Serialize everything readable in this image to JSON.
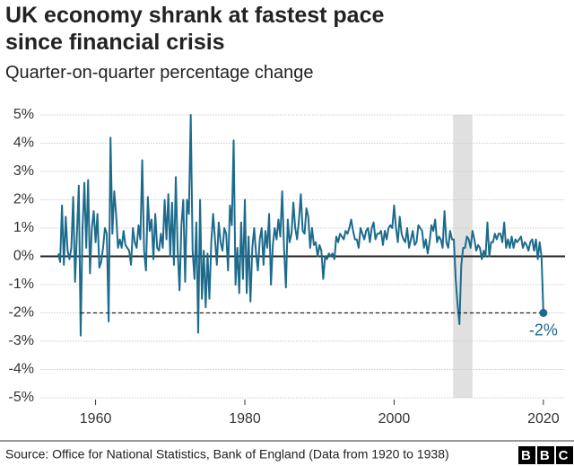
{
  "chart_data": {
    "type": "line",
    "title": "UK economy shrank at fastest pace since financial crisis",
    "subtitle": "Quarter-on-quarter percentage change",
    "source": "Source: Office for National Statistics, Bank of England (Data from 1920 to 1938)",
    "logo": "BBC",
    "annotation": "-2%",
    "color": "#1d6b8c",
    "shaded_range": [
      2007.9,
      2010.5
    ],
    "xlim": [
      1952.6,
      2022.9
    ],
    "xticks": [
      1960,
      1980,
      2000,
      2020
    ],
    "ylim": [
      -5,
      5
    ],
    "yticks": [
      {
        "value": 5,
        "label": "5%"
      },
      {
        "value": 4,
        "label": "4%"
      },
      {
        "value": 3,
        "label": "3%"
      },
      {
        "value": 2,
        "label": "2%"
      },
      {
        "value": 1,
        "label": "1%"
      },
      {
        "value": 0,
        "label": "0%"
      },
      {
        "value": -1,
        "label": "-1%"
      },
      {
        "value": -2,
        "label": "-2%"
      },
      {
        "value": -3,
        "label": "-3%"
      },
      {
        "value": -4,
        "label": "-4%"
      },
      {
        "value": -5,
        "label": "-5%"
      }
    ],
    "grid": true,
    "x": [
      1955,
      1955.25,
      1955.5,
      1955.75,
      1956,
      1956.25,
      1956.5,
      1956.75,
      1957,
      1957.25,
      1957.5,
      1957.75,
      1958,
      1958.25,
      1958.5,
      1958.75,
      1959,
      1959.25,
      1959.5,
      1959.75,
      1960,
      1960.25,
      1960.5,
      1960.75,
      1961,
      1961.25,
      1961.5,
      1961.75,
      1962,
      1962.25,
      1962.5,
      1962.75,
      1963,
      1963.25,
      1963.5,
      1963.75,
      1964,
      1964.25,
      1964.5,
      1964.75,
      1965,
      1965.25,
      1965.5,
      1965.75,
      1966,
      1966.25,
      1966.5,
      1966.75,
      1967,
      1967.25,
      1967.5,
      1967.75,
      1968,
      1968.25,
      1968.5,
      1968.75,
      1969,
      1969.25,
      1969.5,
      1969.75,
      1970,
      1970.25,
      1970.5,
      1970.75,
      1971,
      1971.25,
      1971.5,
      1971.75,
      1972,
      1972.25,
      1972.5,
      1972.75,
      1973,
      1973.25,
      1973.5,
      1973.75,
      1974,
      1974.25,
      1974.5,
      1974.75,
      1975,
      1975.25,
      1975.5,
      1975.75,
      1976,
      1976.25,
      1976.5,
      1976.75,
      1977,
      1977.25,
      1977.5,
      1977.75,
      1978,
      1978.25,
      1978.5,
      1978.75,
      1979,
      1979.25,
      1979.5,
      1979.75,
      1980,
      1980.25,
      1980.5,
      1980.75,
      1981,
      1981.25,
      1981.5,
      1981.75,
      1982,
      1982.25,
      1982.5,
      1982.75,
      1983,
      1983.25,
      1983.5,
      1983.75,
      1984,
      1984.25,
      1984.5,
      1984.75,
      1985,
      1985.25,
      1985.5,
      1985.75,
      1986,
      1986.25,
      1986.5,
      1986.75,
      1987,
      1987.25,
      1987.5,
      1987.75,
      1988,
      1988.25,
      1988.5,
      1988.75,
      1989,
      1989.25,
      1989.5,
      1989.75,
      1990,
      1990.25,
      1990.5,
      1990.75,
      1991,
      1991.25,
      1991.5,
      1991.75,
      1992,
      1992.25,
      1992.5,
      1992.75,
      1993,
      1993.25,
      1993.5,
      1993.75,
      1994,
      1994.25,
      1994.5,
      1994.75,
      1995,
      1995.25,
      1995.5,
      1995.75,
      1996,
      1996.25,
      1996.5,
      1996.75,
      1997,
      1997.25,
      1997.5,
      1997.75,
      1998,
      1998.25,
      1998.5,
      1998.75,
      1999,
      1999.25,
      1999.5,
      1999.75,
      2000,
      2000.25,
      2000.5,
      2000.75,
      2001,
      2001.25,
      2001.5,
      2001.75,
      2002,
      2002.25,
      2002.5,
      2002.75,
      2003,
      2003.25,
      2003.5,
      2003.75,
      2004,
      2004.25,
      2004.5,
      2004.75,
      2005,
      2005.25,
      2005.5,
      2005.75,
      2006,
      2006.25,
      2006.5,
      2006.75,
      2007,
      2007.25,
      2007.5,
      2007.75,
      2008,
      2008.25,
      2008.5,
      2008.75,
      2009,
      2009.25,
      2009.5,
      2009.75,
      2010,
      2010.25,
      2010.5,
      2010.75,
      2011,
      2011.25,
      2011.5,
      2011.75,
      2012,
      2012.25,
      2012.5,
      2012.75,
      2013,
      2013.25,
      2013.5,
      2013.75,
      2014,
      2014.25,
      2014.5,
      2014.75,
      2015,
      2015.25,
      2015.5,
      2015.75,
      2016,
      2016.25,
      2016.5,
      2016.75,
      2017,
      2017.25,
      2017.5,
      2017.75,
      2018,
      2018.25,
      2018.5,
      2018.75,
      2019,
      2019.25,
      2019.5,
      2019.75,
      2020
    ],
    "values": [
      0.1,
      -0.2,
      1.8,
      -0.3,
      1.4,
      0.2,
      -0.1,
      0.3,
      2.1,
      -0.9,
      0.8,
      2.5,
      -2.8,
      1.0,
      2.6,
      0.3,
      2.7,
      -0.6,
      1.0,
      1.6,
      0.5,
      1.5,
      -0.4,
      -0.2,
      0.3,
      1.0,
      0.8,
      -2.3,
      4.2,
      0.8,
      2.3,
      1.5,
      0.3,
      0.6,
      0.3,
      0.9,
      0.4,
      0.3,
      0.2,
      -0.3,
      1.0,
      0.5,
      0.3,
      1.1,
      0.6,
      3.4,
      0.2,
      -0.5,
      2.1,
      0.9,
      1.3,
      -0.1,
      1.5,
      0.3,
      0.2,
      0.8,
      0.3,
      2.0,
      0.6,
      2.2,
      0.0,
      1.9,
      -0.3,
      2.8,
      0.2,
      -1.2,
      1.1,
      2.0,
      -0.9,
      2.0,
      1.5,
      5.0,
      0.2,
      -0.8,
      1.2,
      -2.7,
      2.0,
      -1.5,
      0.2,
      -1.8,
      0.1,
      -1.5,
      0.5,
      1.5,
      0.6,
      -0.3,
      1.2,
      0.5,
      0.2,
      1.0,
      0.8,
      -0.5,
      1.8,
      1.1,
      4.1,
      -1.0,
      0.3,
      -1.3,
      1.2,
      -0.8,
      2.0,
      -1.3,
      0.7,
      -1.6,
      0.3,
      1.0,
      0.1,
      -0.5,
      0.6,
      1.0,
      -0.3,
      0.9,
      0.3,
      1.5,
      -1.0,
      0.4,
      1.0,
      0.6,
      1.3,
      0.7,
      2.3,
      0.3,
      -1.1,
      1.3,
      0.5,
      0.8,
      1.9,
      1.0,
      0.6,
      1.3,
      2.2,
      0.9,
      0.8,
      1.7,
      1.4,
      0.3,
      1.0,
      0.4,
      0.5,
      0.0,
      0.4,
      0.2,
      -0.8,
      0.0,
      -0.1,
      0.1,
      0.0,
      0.1,
      -0.1,
      0.7,
      0.5,
      0.8,
      0.7,
      0.6,
      0.9,
      0.8,
      1.0,
      1.3,
      0.9,
      0.6,
      0.6,
      0.3,
      1.0,
      0.8,
      0.6,
      0.9,
      1.0,
      0.5,
      1.0,
      1.2,
      0.6,
      0.8,
      0.8,
      0.9,
      0.4,
      0.9,
      0.6,
      1.0,
      1.1,
      1.0,
      1.8,
      1.0,
      0.5,
      1.4,
      0.8,
      0.6,
      0.5,
      1.0,
      0.3,
      0.6,
      0.9,
      0.4,
      0.5,
      1.1,
      1.0,
      0.9,
      0.3,
      0.6,
      0.1,
      0.5,
      1.1,
      0.9,
      1.3,
      0.5,
      0.7,
      0.6,
      0.3,
      1.6,
      0.5,
      0.3,
      0.9,
      0.6,
      0.6,
      -0.8,
      -1.7,
      -2.4,
      -0.3,
      0.3,
      0.3,
      0.7,
      0.6,
      0.3,
      0.9,
      0.6,
      0.2,
      0.4,
      0.3,
      -0.1,
      0.2,
      0.0,
      1.2,
      0.0,
      0.5,
      0.5,
      0.8,
      0.6,
      0.8,
      0.8,
      0.5,
      1.2,
      0.3,
      0.6,
      0.3,
      0.7,
      0.3,
      0.6,
      0.5,
      0.6,
      0.7,
      0.3,
      0.5,
      0.4,
      0.2,
      0.5,
      0.6,
      0.2,
      0.6,
      -0.1,
      0.5,
      0.0,
      -2.0
    ]
  }
}
